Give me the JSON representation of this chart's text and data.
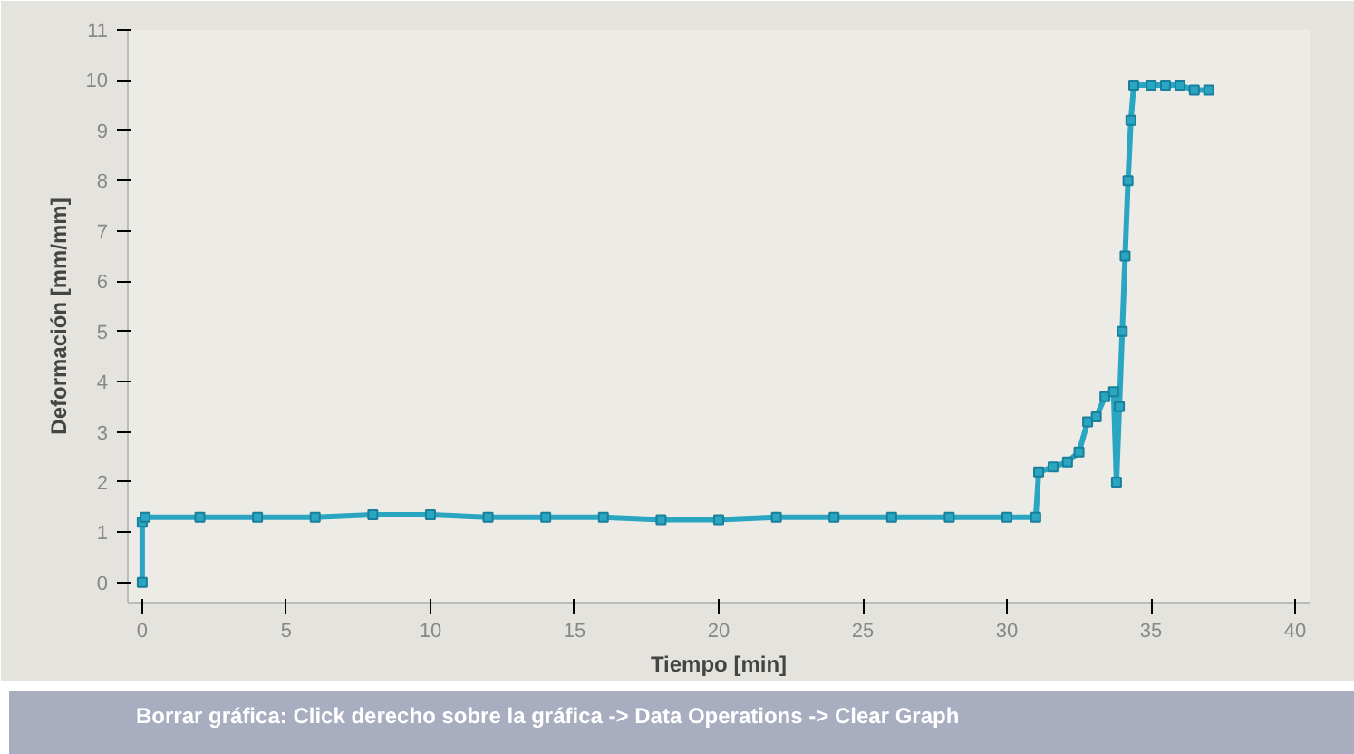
{
  "chart_data": {
    "type": "line",
    "xlabel": "Tiempo [min]",
    "ylabel": "Deformación [mm/mm]",
    "annotations": [
      "Borrar gráfica: Click derecho sobre la gráfica -> Data Operations -> Clear Graph"
    ],
    "xlim": [
      -0.5,
      40.5
    ],
    "ylim": [
      -0.4,
      11
    ],
    "xticks": [
      0,
      5,
      10,
      15,
      20,
      25,
      30,
      35,
      40
    ],
    "yticks": [
      0,
      1,
      2,
      3,
      4,
      5,
      6,
      7,
      8,
      9,
      10,
      11
    ],
    "grid": false,
    "marker": "square",
    "line_style": "solid",
    "series": [
      {
        "color": "#2aa6c2",
        "x": [
          0,
          0,
          0.1,
          2,
          4,
          6,
          8,
          10,
          12,
          14,
          16,
          18,
          20,
          22,
          24,
          26,
          28,
          30,
          31.0,
          31.1,
          31.6,
          32.1,
          32.5,
          32.8,
          33.1,
          33.4,
          33.7,
          33.8,
          33.9,
          34.0,
          34.1,
          34.2,
          34.3,
          34.4,
          35.0,
          35.5,
          36.0,
          36.5,
          37.0
        ],
        "values": [
          0,
          1.2,
          1.3,
          1.3,
          1.3,
          1.3,
          1.35,
          1.35,
          1.3,
          1.3,
          1.3,
          1.25,
          1.25,
          1.3,
          1.3,
          1.3,
          1.3,
          1.3,
          1.3,
          2.2,
          2.3,
          2.4,
          2.6,
          3.2,
          3.3,
          3.7,
          3.8,
          2.0,
          3.5,
          5.0,
          6.5,
          8.0,
          9.2,
          9.9,
          9.9,
          9.9,
          9.9,
          9.8,
          9.8
        ]
      }
    ]
  }
}
